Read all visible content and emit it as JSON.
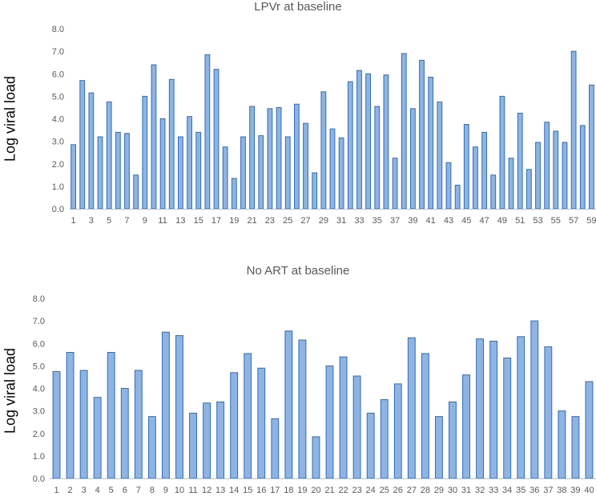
{
  "colors": {
    "bar_fill": "#8fb4e3",
    "bar_stroke": "#2f6db5",
    "axis": "#bfbfbf",
    "text": "#595959"
  },
  "chart_data": [
    {
      "type": "bar",
      "title": "LPVr  at baseline",
      "xlabel": "",
      "ylabel": "Log viral load",
      "ylim": [
        0,
        8
      ],
      "yticks": [
        "0.0",
        "1.0",
        "2.0",
        "3.0",
        "4.0",
        "5.0",
        "6.0",
        "7.0",
        "8.0"
      ],
      "grid": false,
      "categories": [
        1,
        2,
        3,
        4,
        5,
        6,
        7,
        8,
        9,
        10,
        11,
        12,
        13,
        14,
        15,
        16,
        17,
        18,
        19,
        20,
        21,
        22,
        23,
        24,
        25,
        26,
        27,
        28,
        29,
        30,
        31,
        32,
        33,
        34,
        35,
        36,
        37,
        38,
        39,
        40,
        41,
        42,
        43,
        44,
        45,
        46,
        47,
        48,
        49,
        50,
        51,
        52,
        53,
        54,
        55,
        56,
        57,
        58,
        59
      ],
      "shown_category_labels": [
        "1",
        "3",
        "5",
        "7",
        "9",
        "11",
        "13",
        "15",
        "17",
        "19",
        "21",
        "23",
        "25",
        "27",
        "29",
        "31",
        "33",
        "35",
        "37",
        "39",
        "41",
        "43",
        "45",
        "47",
        "49",
        "51",
        "53",
        "55",
        "57",
        "59"
      ],
      "values": [
        2.85,
        5.7,
        5.15,
        3.2,
        4.75,
        3.4,
        3.35,
        1.5,
        5.0,
        6.4,
        4.0,
        5.75,
        3.2,
        4.1,
        3.4,
        6.85,
        6.2,
        2.75,
        1.35,
        3.2,
        4.55,
        3.25,
        4.45,
        4.5,
        3.2,
        4.65,
        3.8,
        1.6,
        5.2,
        3.55,
        3.15,
        5.65,
        6.15,
        6.0,
        4.55,
        5.95,
        2.25,
        6.9,
        4.45,
        6.6,
        5.85,
        4.75,
        2.05,
        1.05,
        3.75,
        2.75,
        3.4,
        1.5,
        5.0,
        2.25,
        4.25,
        1.75,
        2.95,
        3.85,
        3.45,
        2.95,
        7.0,
        3.7,
        5.5
      ]
    },
    {
      "type": "bar",
      "title": "No ART at baseline",
      "xlabel": "",
      "ylabel": "Log viral load",
      "ylim": [
        0,
        8
      ],
      "yticks": [
        "0.0",
        "1.0",
        "2.0",
        "3.0",
        "4.0",
        "5.0",
        "6.0",
        "7.0",
        "8.0"
      ],
      "grid": false,
      "categories": [
        1,
        2,
        3,
        4,
        5,
        6,
        7,
        8,
        9,
        10,
        11,
        12,
        13,
        14,
        15,
        16,
        17,
        18,
        19,
        20,
        21,
        22,
        23,
        24,
        25,
        26,
        27,
        28,
        29,
        30,
        31,
        32,
        33,
        34,
        35,
        36,
        37,
        38,
        39,
        40
      ],
      "shown_category_labels": [
        "1",
        "2",
        "3",
        "4",
        "5",
        "6",
        "7",
        "8",
        "9",
        "10",
        "11",
        "12",
        "13",
        "14",
        "15",
        "16",
        "17",
        "18",
        "19",
        "20",
        "21",
        "22",
        "23",
        "24",
        "25",
        "26",
        "27",
        "28",
        "29",
        "30",
        "31",
        "32",
        "33",
        "34",
        "35",
        "36",
        "37",
        "38",
        "39",
        "40"
      ],
      "values": [
        4.75,
        5.6,
        4.8,
        3.6,
        5.6,
        4.0,
        4.8,
        2.75,
        6.5,
        6.35,
        2.9,
        3.35,
        3.4,
        4.7,
        5.55,
        4.9,
        2.65,
        6.55,
        6.15,
        1.85,
        5.0,
        5.4,
        4.55,
        2.9,
        3.5,
        4.2,
        6.25,
        5.55,
        2.75,
        3.4,
        4.6,
        6.2,
        6.1,
        5.35,
        6.3,
        7.0,
        5.85,
        3.0,
        2.75,
        4.3
      ]
    }
  ]
}
